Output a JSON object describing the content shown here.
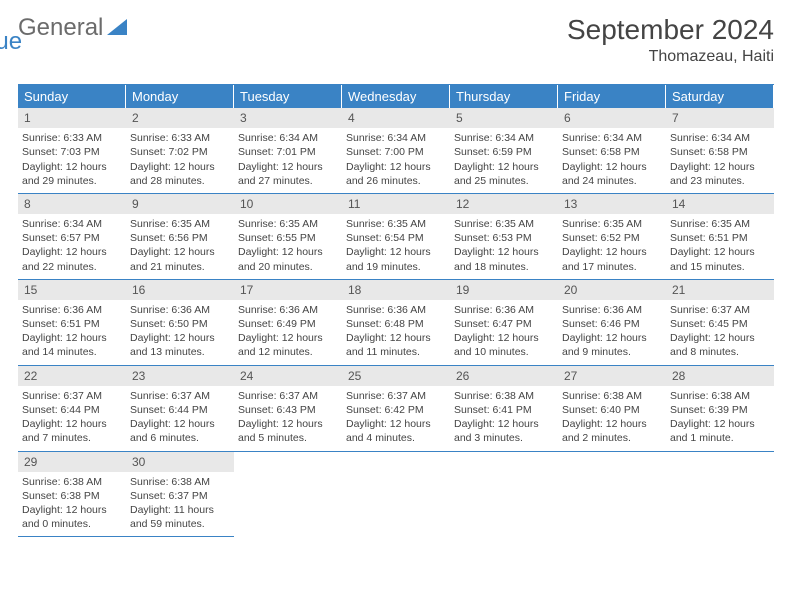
{
  "logo": {
    "word1": "General",
    "word2": "Blue"
  },
  "header": {
    "title": "September 2024",
    "location": "Thomazeau, Haiti"
  },
  "theme": {
    "accent": "#3a83c5",
    "header_text": "#ffffff",
    "daynum_bg": "#e8e8e8",
    "body_text": "#444444",
    "logo_gray": "#6b6b6b"
  },
  "calendar": {
    "columns": 7,
    "day_names": [
      "Sunday",
      "Monday",
      "Tuesday",
      "Wednesday",
      "Thursday",
      "Friday",
      "Saturday"
    ],
    "days": [
      {
        "n": "1",
        "sunrise": "Sunrise: 6:33 AM",
        "sunset": "Sunset: 7:03 PM",
        "dl1": "Daylight: 12 hours",
        "dl2": "and 29 minutes."
      },
      {
        "n": "2",
        "sunrise": "Sunrise: 6:33 AM",
        "sunset": "Sunset: 7:02 PM",
        "dl1": "Daylight: 12 hours",
        "dl2": "and 28 minutes."
      },
      {
        "n": "3",
        "sunrise": "Sunrise: 6:34 AM",
        "sunset": "Sunset: 7:01 PM",
        "dl1": "Daylight: 12 hours",
        "dl2": "and 27 minutes."
      },
      {
        "n": "4",
        "sunrise": "Sunrise: 6:34 AM",
        "sunset": "Sunset: 7:00 PM",
        "dl1": "Daylight: 12 hours",
        "dl2": "and 26 minutes."
      },
      {
        "n": "5",
        "sunrise": "Sunrise: 6:34 AM",
        "sunset": "Sunset: 6:59 PM",
        "dl1": "Daylight: 12 hours",
        "dl2": "and 25 minutes."
      },
      {
        "n": "6",
        "sunrise": "Sunrise: 6:34 AM",
        "sunset": "Sunset: 6:58 PM",
        "dl1": "Daylight: 12 hours",
        "dl2": "and 24 minutes."
      },
      {
        "n": "7",
        "sunrise": "Sunrise: 6:34 AM",
        "sunset": "Sunset: 6:58 PM",
        "dl1": "Daylight: 12 hours",
        "dl2": "and 23 minutes."
      },
      {
        "n": "8",
        "sunrise": "Sunrise: 6:34 AM",
        "sunset": "Sunset: 6:57 PM",
        "dl1": "Daylight: 12 hours",
        "dl2": "and 22 minutes."
      },
      {
        "n": "9",
        "sunrise": "Sunrise: 6:35 AM",
        "sunset": "Sunset: 6:56 PM",
        "dl1": "Daylight: 12 hours",
        "dl2": "and 21 minutes."
      },
      {
        "n": "10",
        "sunrise": "Sunrise: 6:35 AM",
        "sunset": "Sunset: 6:55 PM",
        "dl1": "Daylight: 12 hours",
        "dl2": "and 20 minutes."
      },
      {
        "n": "11",
        "sunrise": "Sunrise: 6:35 AM",
        "sunset": "Sunset: 6:54 PM",
        "dl1": "Daylight: 12 hours",
        "dl2": "and 19 minutes."
      },
      {
        "n": "12",
        "sunrise": "Sunrise: 6:35 AM",
        "sunset": "Sunset: 6:53 PM",
        "dl1": "Daylight: 12 hours",
        "dl2": "and 18 minutes."
      },
      {
        "n": "13",
        "sunrise": "Sunrise: 6:35 AM",
        "sunset": "Sunset: 6:52 PM",
        "dl1": "Daylight: 12 hours",
        "dl2": "and 17 minutes."
      },
      {
        "n": "14",
        "sunrise": "Sunrise: 6:35 AM",
        "sunset": "Sunset: 6:51 PM",
        "dl1": "Daylight: 12 hours",
        "dl2": "and 15 minutes."
      },
      {
        "n": "15",
        "sunrise": "Sunrise: 6:36 AM",
        "sunset": "Sunset: 6:51 PM",
        "dl1": "Daylight: 12 hours",
        "dl2": "and 14 minutes."
      },
      {
        "n": "16",
        "sunrise": "Sunrise: 6:36 AM",
        "sunset": "Sunset: 6:50 PM",
        "dl1": "Daylight: 12 hours",
        "dl2": "and 13 minutes."
      },
      {
        "n": "17",
        "sunrise": "Sunrise: 6:36 AM",
        "sunset": "Sunset: 6:49 PM",
        "dl1": "Daylight: 12 hours",
        "dl2": "and 12 minutes."
      },
      {
        "n": "18",
        "sunrise": "Sunrise: 6:36 AM",
        "sunset": "Sunset: 6:48 PM",
        "dl1": "Daylight: 12 hours",
        "dl2": "and 11 minutes."
      },
      {
        "n": "19",
        "sunrise": "Sunrise: 6:36 AM",
        "sunset": "Sunset: 6:47 PM",
        "dl1": "Daylight: 12 hours",
        "dl2": "and 10 minutes."
      },
      {
        "n": "20",
        "sunrise": "Sunrise: 6:36 AM",
        "sunset": "Sunset: 6:46 PM",
        "dl1": "Daylight: 12 hours",
        "dl2": "and 9 minutes."
      },
      {
        "n": "21",
        "sunrise": "Sunrise: 6:37 AM",
        "sunset": "Sunset: 6:45 PM",
        "dl1": "Daylight: 12 hours",
        "dl2": "and 8 minutes."
      },
      {
        "n": "22",
        "sunrise": "Sunrise: 6:37 AM",
        "sunset": "Sunset: 6:44 PM",
        "dl1": "Daylight: 12 hours",
        "dl2": "and 7 minutes."
      },
      {
        "n": "23",
        "sunrise": "Sunrise: 6:37 AM",
        "sunset": "Sunset: 6:44 PM",
        "dl1": "Daylight: 12 hours",
        "dl2": "and 6 minutes."
      },
      {
        "n": "24",
        "sunrise": "Sunrise: 6:37 AM",
        "sunset": "Sunset: 6:43 PM",
        "dl1": "Daylight: 12 hours",
        "dl2": "and 5 minutes."
      },
      {
        "n": "25",
        "sunrise": "Sunrise: 6:37 AM",
        "sunset": "Sunset: 6:42 PM",
        "dl1": "Daylight: 12 hours",
        "dl2": "and 4 minutes."
      },
      {
        "n": "26",
        "sunrise": "Sunrise: 6:38 AM",
        "sunset": "Sunset: 6:41 PM",
        "dl1": "Daylight: 12 hours",
        "dl2": "and 3 minutes."
      },
      {
        "n": "27",
        "sunrise": "Sunrise: 6:38 AM",
        "sunset": "Sunset: 6:40 PM",
        "dl1": "Daylight: 12 hours",
        "dl2": "and 2 minutes."
      },
      {
        "n": "28",
        "sunrise": "Sunrise: 6:38 AM",
        "sunset": "Sunset: 6:39 PM",
        "dl1": "Daylight: 12 hours",
        "dl2": "and 1 minute."
      },
      {
        "n": "29",
        "sunrise": "Sunrise: 6:38 AM",
        "sunset": "Sunset: 6:38 PM",
        "dl1": "Daylight: 12 hours",
        "dl2": "and 0 minutes."
      },
      {
        "n": "30",
        "sunrise": "Sunrise: 6:38 AM",
        "sunset": "Sunset: 6:37 PM",
        "dl1": "Daylight: 11 hours",
        "dl2": "and 59 minutes."
      }
    ],
    "trailing_empty": 5
  }
}
